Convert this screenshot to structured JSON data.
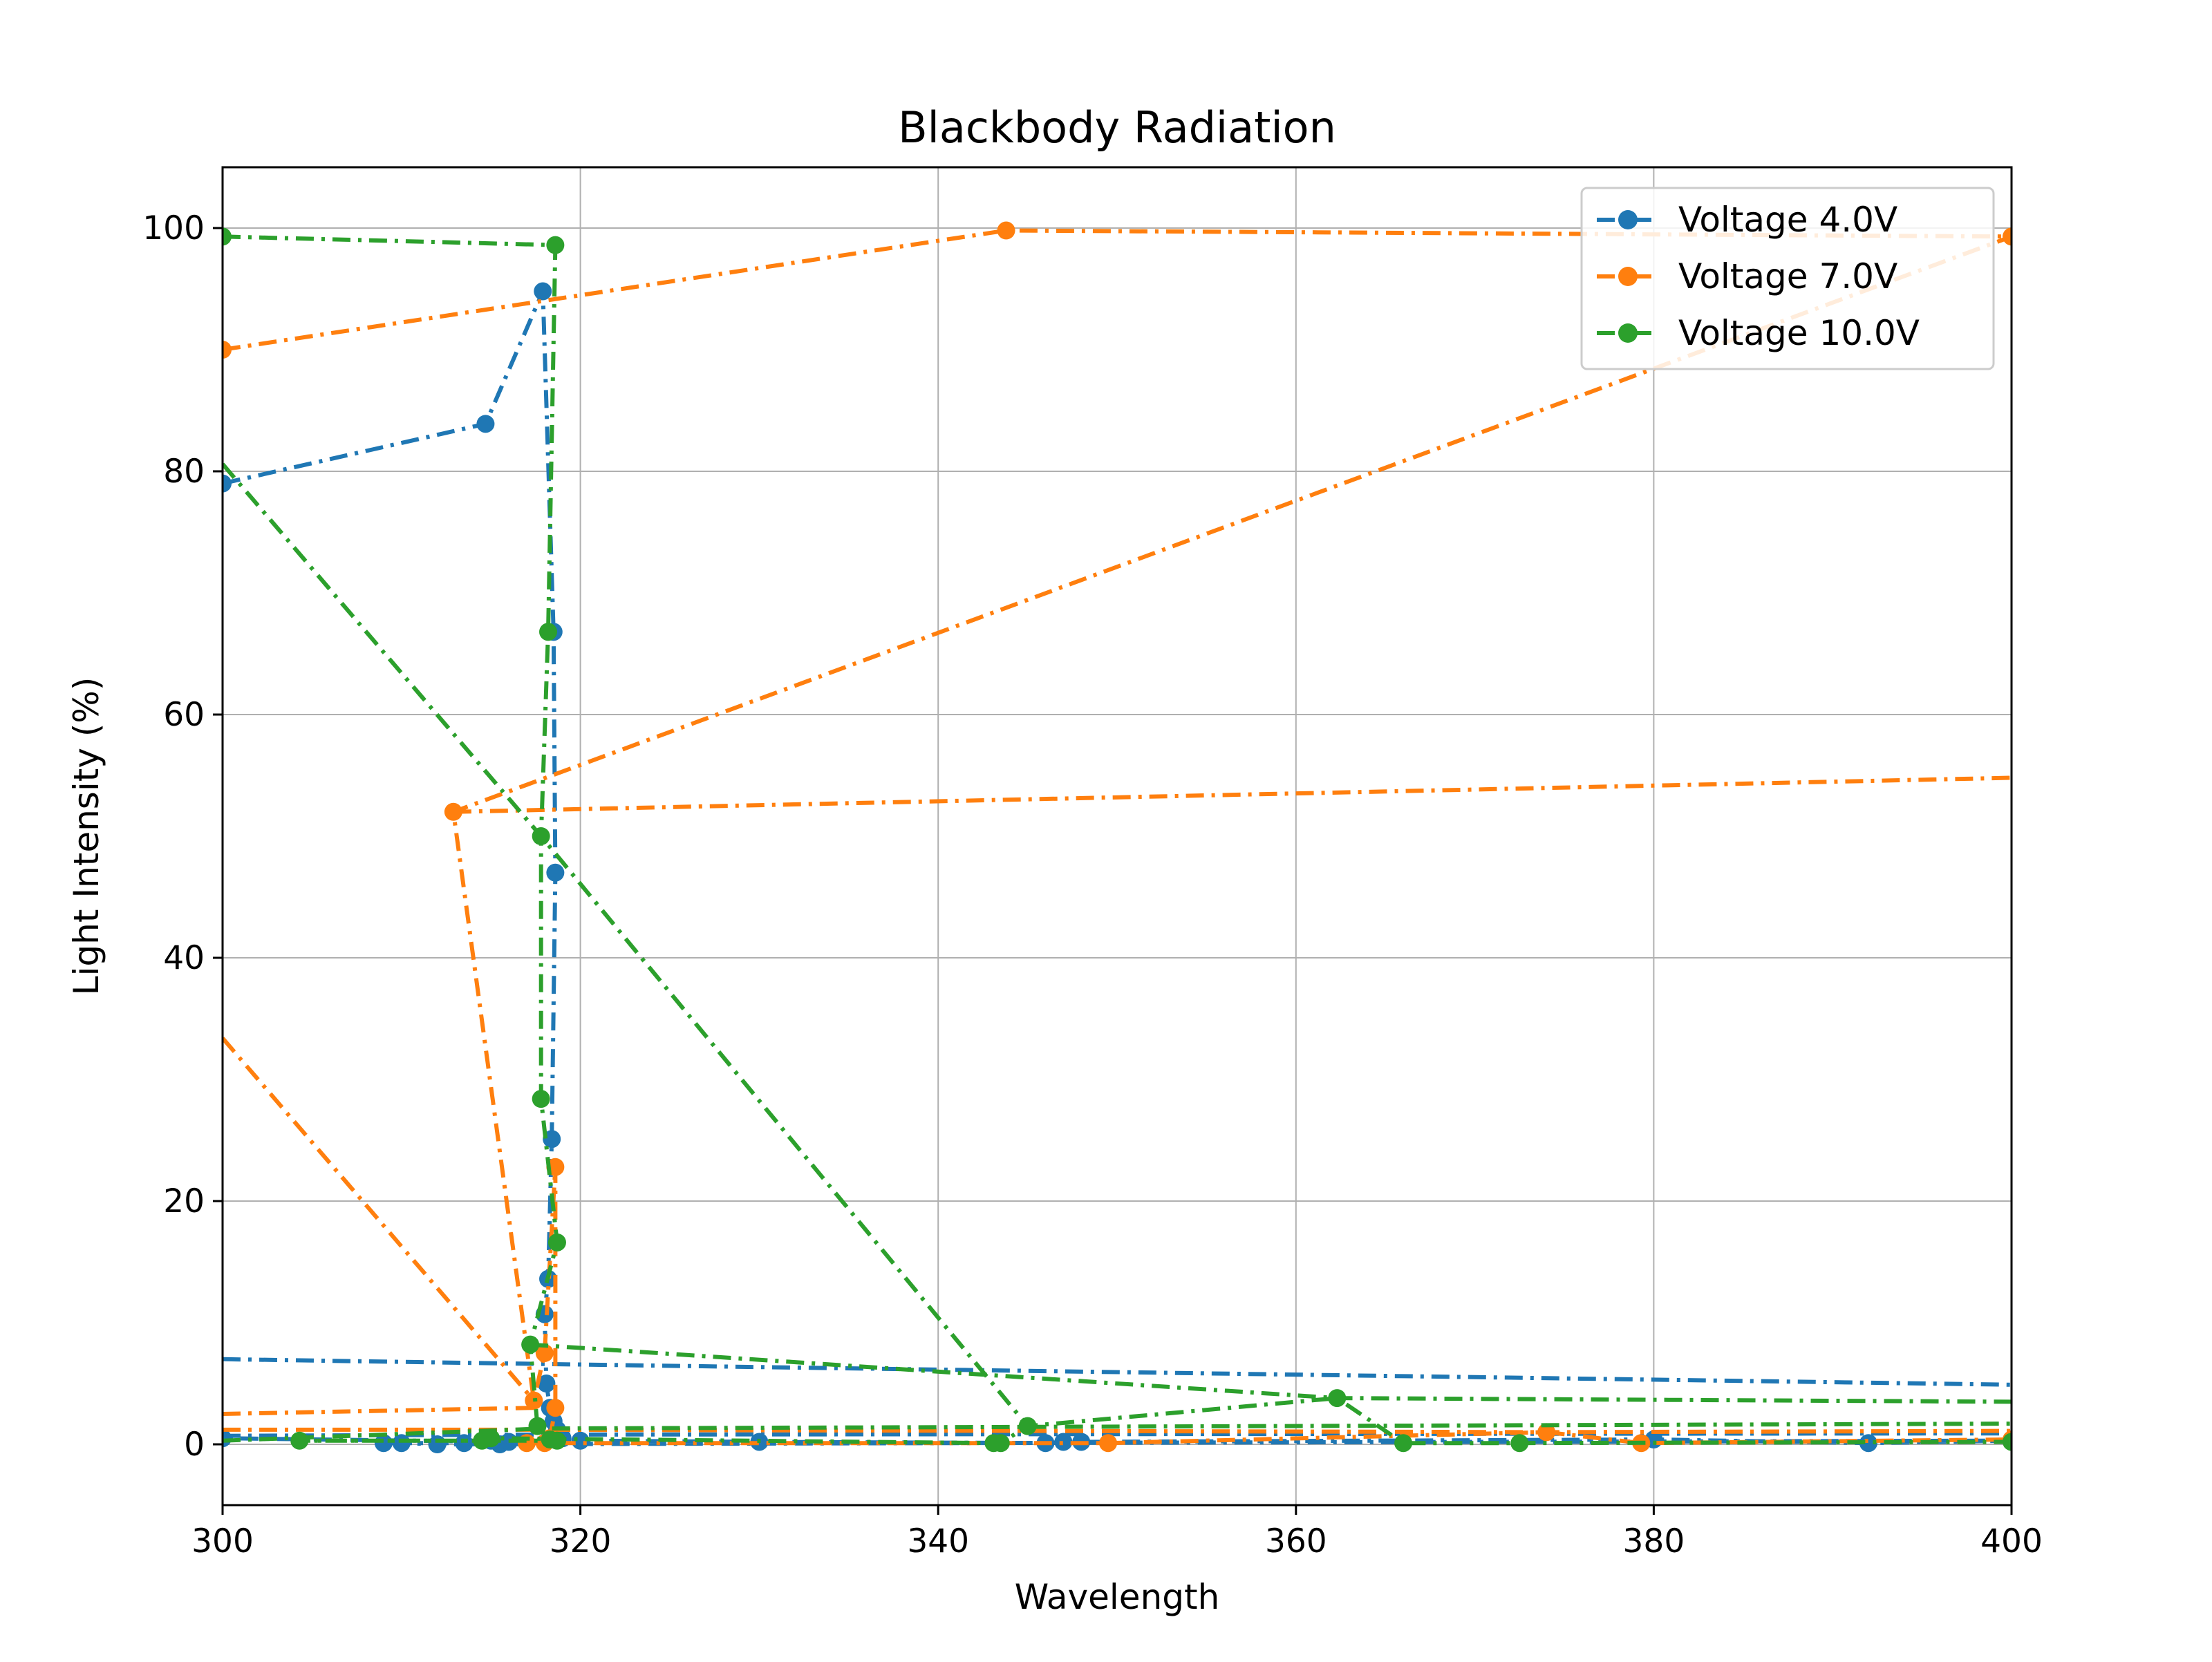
{
  "chart_data": {
    "type": "line",
    "title": "Blackbody Radiation",
    "xlabel": "Wavelength",
    "ylabel": "Light Intensity (%)",
    "xlim": [
      300,
      400
    ],
    "ylim": [
      -5,
      105
    ],
    "xticks": [
      "300",
      "320",
      "340",
      "360",
      "380",
      "400"
    ],
    "yticks": [
      "0",
      "20",
      "40",
      "60",
      "80",
      "100"
    ],
    "grid": true,
    "legend_position": "top-right",
    "series": [
      {
        "name": "Voltage 4.0V",
        "color": "#1f77b4",
        "linestyle": "dash-dot",
        "marker": "circle",
        "points": [
          [
            300.0,
            79.0
          ],
          [
            314.7,
            83.9
          ],
          [
            317.9,
            94.8
          ],
          [
            318.5,
            66.8
          ],
          [
            318.6,
            47.0
          ],
          [
            318.4,
            25.1
          ],
          [
            318.2,
            13.6
          ],
          [
            318.0,
            10.7
          ],
          [
            318.1,
            5.0
          ],
          [
            318.3,
            3.0
          ],
          [
            318.5,
            1.9
          ],
          [
            318.7,
            1.2
          ],
          [
            318.8,
            0.8
          ],
          [
            319.0,
            0.5
          ],
          [
            320.0,
            0.3
          ],
          [
            330.0,
            0.2
          ],
          [
            346.0,
            0.1
          ],
          [
            347.0,
            0.2
          ],
          [
            348.0,
            0.2
          ],
          [
            380.0,
            0.4
          ],
          [
            392.0,
            0.1
          ],
          [
            400.0,
            0.3
          ],
          [
            312.0,
            0.0
          ],
          [
            310.0,
            0.1
          ],
          [
            309.0,
            0.1
          ],
          [
            313.5,
            0.1
          ],
          [
            315.0,
            0.3
          ],
          [
            315.5,
            0.0
          ],
          [
            316.0,
            0.2
          ],
          [
            300.0,
            0.5
          ]
        ],
        "extra_lines": [
          [
            [
              300.0,
              7.0
            ],
            [
              318.0,
              6.6
            ],
            [
              400.0,
              4.9
            ]
          ],
          [
            [
              300.0,
              0.7
            ],
            [
              318.0,
              0.8
            ],
            [
              400.0,
              0.9
            ]
          ]
        ]
      },
      {
        "name": "Voltage 7.0V",
        "color": "#ff7f0e",
        "linestyle": "dash-dot",
        "marker": "circle",
        "points": [
          [
            300.0,
            90.0
          ],
          [
            343.8,
            99.8
          ],
          [
            400.0,
            99.3
          ],
          [
            312.9,
            52.0
          ],
          [
            317.4,
            3.6
          ],
          [
            318.0,
            7.5
          ],
          [
            318.6,
            22.8
          ],
          [
            318.6,
            3.0
          ],
          [
            318.3,
            0.5
          ],
          [
            318.0,
            0.1
          ],
          [
            317.0,
            0.1
          ],
          [
            349.5,
            0.1
          ],
          [
            374.0,
            1.0
          ],
          [
            379.3,
            0.1
          ],
          [
            400.0,
            0.4
          ]
        ],
        "extra_lines": [
          [
            [
              300.0,
              33.4
            ],
            [
              317.4,
              3.6
            ]
          ],
          [
            [
              312.9,
              52.0
            ],
            [
              400.0,
              54.8
            ]
          ],
          [
            [
              300.0,
              2.5
            ],
            [
              317.4,
              3.0
            ]
          ],
          [
            [
              300.0,
              1.2
            ],
            [
              318.0,
              1.2
            ],
            [
              374.0,
              1.0
            ],
            [
              400.0,
              1.1
            ]
          ]
        ]
      },
      {
        "name": "Voltage 10.0V",
        "color": "#2ca02c",
        "linestyle": "dash-dot",
        "marker": "circle",
        "points": [
          [
            300.0,
            99.3
          ],
          [
            318.6,
            98.6
          ],
          [
            318.2,
            66.8
          ],
          [
            317.8,
            50.0
          ],
          [
            317.8,
            28.4
          ],
          [
            318.7,
            16.6
          ],
          [
            317.2,
            8.2
          ],
          [
            317.6,
            1.5
          ],
          [
            318.3,
            0.4
          ],
          [
            318.7,
            0.3
          ],
          [
            304.3,
            0.3
          ],
          [
            314.5,
            0.3
          ],
          [
            315.0,
            0.5
          ],
          [
            343.1,
            0.1
          ],
          [
            343.5,
            0.1
          ],
          [
            345.0,
            1.5
          ],
          [
            362.3,
            3.8
          ],
          [
            366.0,
            0.1
          ],
          [
            372.5,
            0.1
          ],
          [
            400.0,
            0.2
          ]
        ],
        "extra_lines": [
          [
            [
              300.0,
              80.6
            ],
            [
              317.8,
              50.0
            ],
            [
              345.0,
              1.5
            ]
          ],
          [
            [
              317.2,
              8.2
            ],
            [
              362.3,
              3.8
            ],
            [
              400.0,
              3.5
            ]
          ],
          [
            [
              300.0,
              0.3
            ],
            [
              318.0,
              1.3
            ],
            [
              400.0,
              1.7
            ]
          ]
        ]
      }
    ]
  }
}
